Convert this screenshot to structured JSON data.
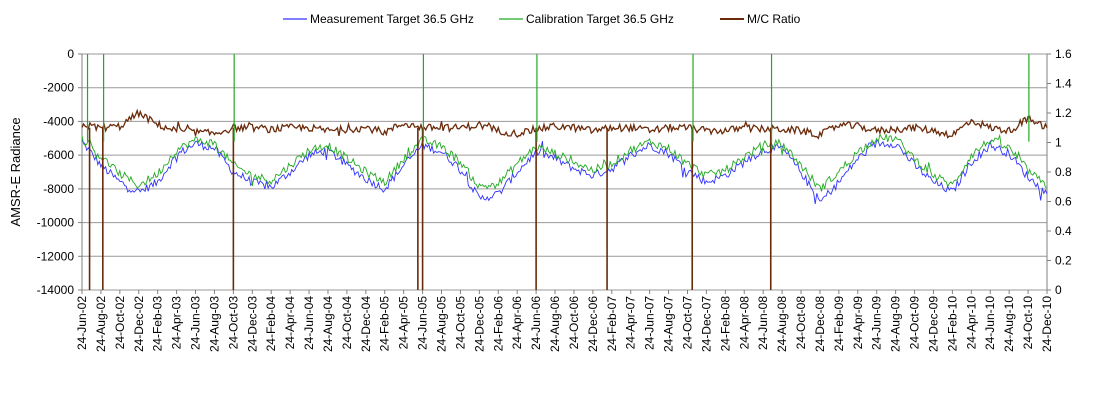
{
  "chart_data": {
    "type": "line",
    "title": "",
    "ylabel": "AMSR-E Radiance",
    "y2label": "",
    "ylim": [
      -14000,
      0
    ],
    "y_ticks": [
      0,
      -2000,
      -4000,
      -6000,
      -8000,
      -10000,
      -12000,
      -14000
    ],
    "y_tick_labels": [
      "0",
      "-2000",
      "-4000",
      "-6000",
      "-8000",
      "-10000",
      "-12000",
      "-14000"
    ],
    "y2lim": [
      0,
      1.6
    ],
    "y2_ticks": [
      1.6,
      1.4,
      1.2,
      1,
      0.8,
      0.6,
      0.4,
      0.2,
      0
    ],
    "y2_tick_labels": [
      "1.6",
      "1.4",
      "1.2",
      "1",
      "0.8",
      "0.6",
      "0.4",
      "0.2",
      "0"
    ],
    "x_tick_labels": [
      "24-Jun-02",
      "24-Aug-02",
      "24-Oct-02",
      "24-Dec-02",
      "24-Feb-03",
      "24-Apr-03",
      "24-Jun-03",
      "24-Aug-03",
      "24-Oct-03",
      "24-Dec-03",
      "24-Feb-04",
      "24-Apr-04",
      "24-Jun-04",
      "24-Aug-04",
      "24-Oct-04",
      "24-Dec-04",
      "24-Feb-05",
      "24-Apr-05",
      "24-Jun-05",
      "24-Aug-05",
      "24-Oct-05",
      "24-Dec-05",
      "24-Feb-06",
      "24-Apr-06",
      "24-Jun-06",
      "24-Aug-06",
      "24-Oct-06",
      "24-Dec-06",
      "24-Feb-07",
      "24-Apr-07",
      "24-Jun-07",
      "24-Aug-07",
      "24-Oct-07",
      "24-Dec-07",
      "24-Feb-08",
      "24-Apr-08",
      "24-Jun-08",
      "24-Aug-08",
      "24-Oct-08",
      "24-Dec-08",
      "24-Feb-09",
      "24-Apr-09",
      "24-Jun-09",
      "24-Aug-09",
      "24-Oct-09",
      "24-Dec-09",
      "24-Feb-10",
      "24-Apr-10",
      "24-Jun-10",
      "24-Aug-10",
      "24-Oct-10",
      "24-Dec-10"
    ],
    "grid": "horizontal",
    "legend_position": "top",
    "x_tick_step_months": 2,
    "series": [
      {
        "name": "Measurement Target 36.5 GHz",
        "axis": "left",
        "color": "#3333ff",
        "x": [
          "24-Jun-02",
          "24-Aug-02",
          "24-Oct-02",
          "24-Dec-02",
          "24-Feb-03",
          "24-Apr-03",
          "24-Jun-03",
          "24-Aug-03",
          "24-Oct-03",
          "24-Dec-03",
          "24-Feb-04",
          "24-Apr-04",
          "24-Jun-04",
          "24-Aug-04",
          "24-Oct-04",
          "24-Dec-04",
          "24-Feb-05",
          "24-Apr-05",
          "24-Jun-05",
          "24-Aug-05",
          "24-Oct-05",
          "24-Dec-05",
          "24-Feb-06",
          "24-Apr-06",
          "24-Jun-06",
          "24-Aug-06",
          "24-Oct-06",
          "24-Dec-06",
          "24-Feb-07",
          "24-Apr-07",
          "24-Jun-07",
          "24-Aug-07",
          "24-Oct-07",
          "24-Dec-07",
          "24-Feb-08",
          "24-Apr-08",
          "24-Jun-08",
          "24-Aug-08",
          "24-Oct-08",
          "24-Dec-08",
          "24-Feb-09",
          "24-Apr-09",
          "24-Jun-09",
          "24-Aug-09",
          "24-Oct-09",
          "24-Dec-09",
          "24-Feb-10",
          "24-Apr-10",
          "24-Jun-10",
          "24-Aug-10",
          "24-Oct-10",
          "24-Dec-10"
        ],
        "values": [
          -5200,
          -6600,
          -7600,
          -8200,
          -7600,
          -6000,
          -5300,
          -5600,
          -7000,
          -7600,
          -7900,
          -7000,
          -6000,
          -5700,
          -6600,
          -7400,
          -8000,
          -6600,
          -5400,
          -5800,
          -6800,
          -8600,
          -8300,
          -7000,
          -5800,
          -6200,
          -6800,
          -7200,
          -6800,
          -6000,
          -5400,
          -5900,
          -6900,
          -7600,
          -7200,
          -6400,
          -5700,
          -5600,
          -7000,
          -8800,
          -7600,
          -6200,
          -5300,
          -5300,
          -6600,
          -7600,
          -8200,
          -6400,
          -5400,
          -5900,
          -7300,
          -8300
        ]
      },
      {
        "name": "Calibration Target 36.5 GHz",
        "axis": "left",
        "color": "#22aa22",
        "x": [
          "24-Jun-02",
          "24-Aug-02",
          "24-Oct-02",
          "24-Dec-02",
          "24-Feb-03",
          "24-Apr-03",
          "24-Jun-03",
          "24-Aug-03",
          "24-Oct-03",
          "24-Dec-03",
          "24-Feb-04",
          "24-Apr-04",
          "24-Jun-04",
          "24-Aug-04",
          "24-Oct-04",
          "24-Dec-04",
          "24-Feb-05",
          "24-Apr-05",
          "24-Jun-05",
          "24-Aug-05",
          "24-Oct-05",
          "24-Dec-05",
          "24-Feb-06",
          "24-Apr-06",
          "24-Jun-06",
          "24-Aug-06",
          "24-Oct-06",
          "24-Dec-06",
          "24-Feb-07",
          "24-Apr-07",
          "24-Jun-07",
          "24-Aug-07",
          "24-Oct-07",
          "24-Dec-07",
          "24-Feb-08",
          "24-Apr-08",
          "24-Jun-08",
          "24-Aug-08",
          "24-Oct-08",
          "24-Dec-08",
          "24-Feb-09",
          "24-Apr-09",
          "24-Jun-09",
          "24-Aug-09",
          "24-Oct-09",
          "24-Dec-09",
          "24-Feb-10",
          "24-Apr-10",
          "24-Jun-10",
          "24-Aug-10",
          "24-Oct-10",
          "24-Dec-10"
        ],
        "values": [
          -5000,
          -6100,
          -7100,
          -7800,
          -7100,
          -5700,
          -5100,
          -5300,
          -6600,
          -7200,
          -7500,
          -6600,
          -5700,
          -5400,
          -6200,
          -7000,
          -7600,
          -6200,
          -5100,
          -5500,
          -6400,
          -7900,
          -7700,
          -6500,
          -5500,
          -5900,
          -6400,
          -6900,
          -6500,
          -5700,
          -5200,
          -5600,
          -6500,
          -7200,
          -6900,
          -6100,
          -5400,
          -5300,
          -6600,
          -8000,
          -7000,
          -5800,
          -5000,
          -5000,
          -6200,
          -7200,
          -7800,
          -6000,
          -5100,
          -5600,
          -6900,
          -7900
        ]
      },
      {
        "name": "M/C Ratio",
        "axis": "right",
        "color": "#6b2a0a",
        "x": [
          "24-Jun-02",
          "24-Aug-02",
          "24-Oct-02",
          "24-Dec-02",
          "24-Feb-03",
          "24-Apr-03",
          "24-Jun-03",
          "24-Aug-03",
          "24-Oct-03",
          "24-Dec-03",
          "24-Feb-04",
          "24-Apr-04",
          "24-Jun-04",
          "24-Aug-04",
          "24-Oct-04",
          "24-Dec-04",
          "24-Feb-05",
          "24-Apr-05",
          "24-Jun-05",
          "24-Aug-05",
          "24-Oct-05",
          "24-Dec-05",
          "24-Feb-06",
          "24-Apr-06",
          "24-Jun-06",
          "24-Aug-06",
          "24-Oct-06",
          "24-Dec-06",
          "24-Feb-07",
          "24-Apr-07",
          "24-Jun-07",
          "24-Aug-07",
          "24-Oct-07",
          "24-Dec-07",
          "24-Feb-08",
          "24-Apr-08",
          "24-Jun-08",
          "24-Aug-08",
          "24-Oct-08",
          "24-Dec-08",
          "24-Feb-09",
          "24-Apr-09",
          "24-Jun-09",
          "24-Aug-09",
          "24-Oct-09",
          "24-Dec-09",
          "24-Feb-10",
          "24-Apr-10",
          "24-Jun-10",
          "24-Aug-10",
          "24-Oct-10",
          "24-Dec-10"
        ],
        "values": [
          1.12,
          1.1,
          1.11,
          1.2,
          1.12,
          1.08,
          1.07,
          1.06,
          1.1,
          1.1,
          1.09,
          1.1,
          1.1,
          1.08,
          1.09,
          1.1,
          1.07,
          1.13,
          1.1,
          1.1,
          1.1,
          1.12,
          1.08,
          1.06,
          1.09,
          1.11,
          1.1,
          1.08,
          1.1,
          1.1,
          1.08,
          1.1,
          1.1,
          1.08,
          1.08,
          1.1,
          1.09,
          1.09,
          1.08,
          1.05,
          1.12,
          1.11,
          1.08,
          1.09,
          1.1,
          1.08,
          1.05,
          1.15,
          1.1,
          1.08,
          1.16,
          1.1
        ]
      }
    ],
    "ratio_drops_to_zero_at_month": [
      0.8,
      2.2,
      16,
      35.5,
      36,
      48,
      55.5,
      64.5,
      72.8
    ],
    "calibration_spikes_to_zero_at_month": [
      0.5,
      2.2,
      16,
      36,
      48,
      64.5,
      72.8,
      100
    ]
  }
}
